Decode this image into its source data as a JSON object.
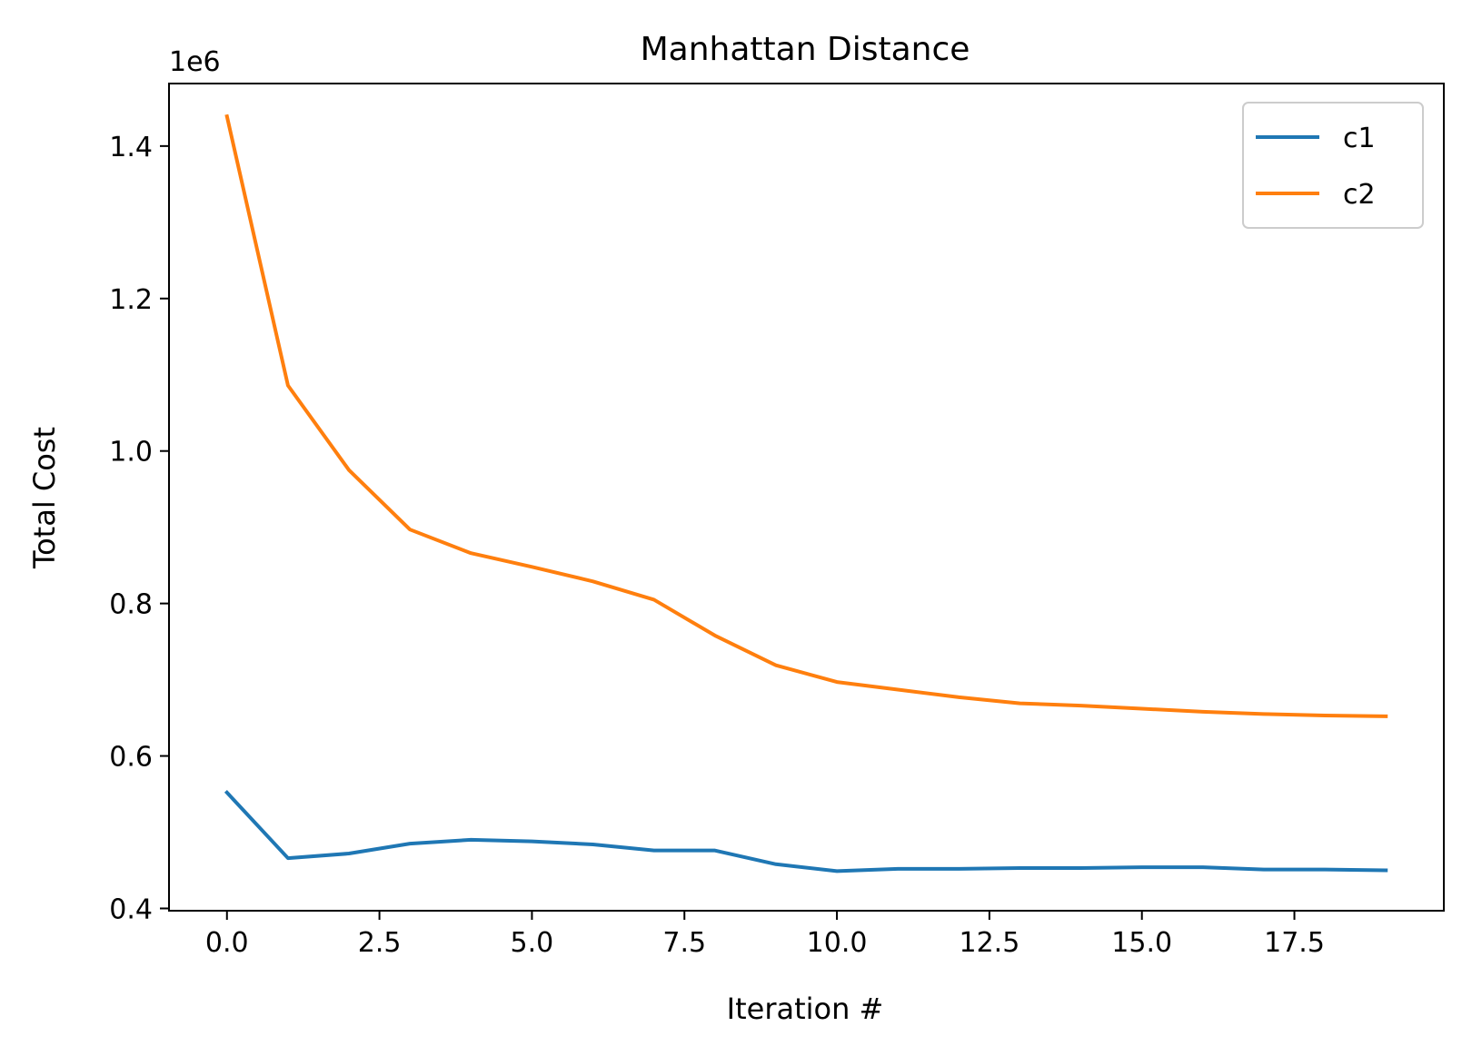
{
  "chart_data": {
    "type": "line",
    "title": "Manhattan Distance",
    "xlabel": "Iteration #",
    "ylabel": "Total Cost",
    "y_offset_label": "1e6",
    "xlim": [
      -0.95,
      19.95
    ],
    "ylim": [
      0.397,
      1.482
    ],
    "x_ticks": [
      0,
      2.5,
      5,
      7.5,
      10,
      12.5,
      15,
      17.5
    ],
    "x_tick_labels": [
      "0.0",
      "2.5",
      "5.0",
      "7.5",
      "10.0",
      "12.5",
      "15.0",
      "17.5"
    ],
    "y_ticks": [
      0.4,
      0.6,
      0.8,
      1.0,
      1.2,
      1.4
    ],
    "y_tick_labels": [
      "0.4",
      "0.6",
      "0.8",
      "1.0",
      "1.2",
      "1.4"
    ],
    "grid": false,
    "legend_position": "top-right",
    "x": [
      0,
      1,
      2,
      3,
      4,
      5,
      6,
      7,
      8,
      9,
      10,
      11,
      12,
      13,
      14,
      15,
      16,
      17,
      18,
      19
    ],
    "series": [
      {
        "name": "c1",
        "color": "#1f77b4",
        "values": [
          0.552,
          0.466,
          0.472,
          0.485,
          0.49,
          0.488,
          0.484,
          0.476,
          0.476,
          0.458,
          0.449,
          0.452,
          0.452,
          0.453,
          0.453,
          0.454,
          0.454,
          0.451,
          0.451,
          0.45
        ]
      },
      {
        "name": "c2",
        "color": "#ff7f0e",
        "values": [
          1.439,
          1.086,
          0.975,
          0.897,
          0.866,
          0.848,
          0.829,
          0.805,
          0.758,
          0.719,
          0.697,
          0.687,
          0.677,
          0.669,
          0.666,
          0.662,
          0.658,
          0.655,
          0.653,
          0.652
        ]
      }
    ]
  }
}
